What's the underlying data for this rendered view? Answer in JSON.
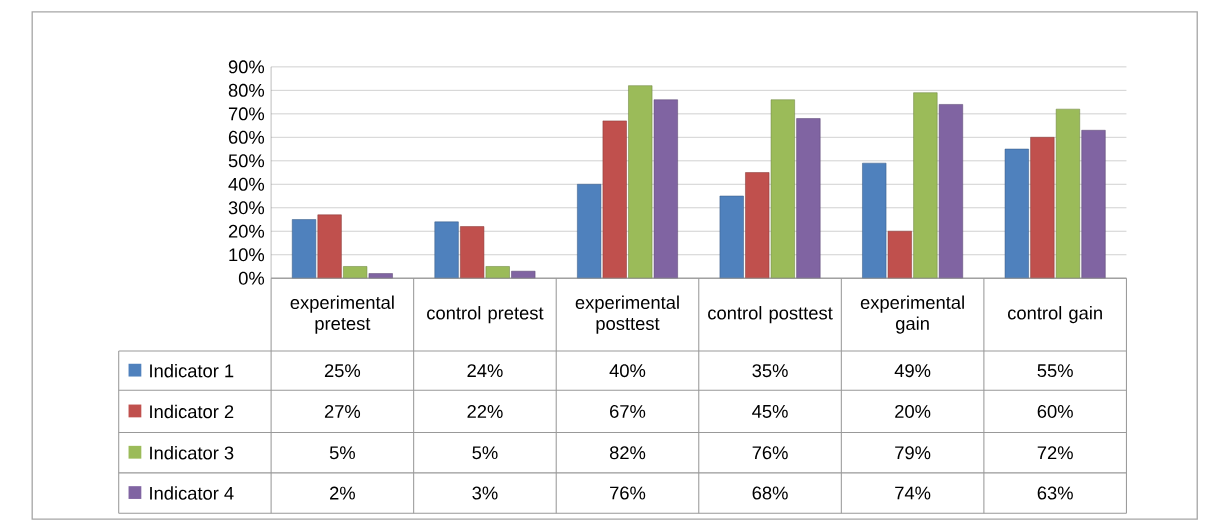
{
  "chart_data": {
    "type": "bar",
    "categories": [
      "experimental pretest",
      "control pretest",
      "experimental posttest",
      "control posttest",
      "experimental gain",
      "control gain"
    ],
    "series": [
      {
        "name": "Indicator 1",
        "color": "#4f81bd",
        "values": [
          25,
          24,
          40,
          35,
          49,
          55
        ],
        "value_labels": [
          "25%",
          "24%",
          "40%",
          "35%",
          "49%",
          "55%"
        ]
      },
      {
        "name": "Indicator 2",
        "color": "#c0504d",
        "values": [
          27,
          22,
          67,
          45,
          20,
          60
        ],
        "value_labels": [
          "27%",
          "22%",
          "67%",
          "45%",
          "20%",
          "60%"
        ]
      },
      {
        "name": "Indicator 3",
        "color": "#9bbb59",
        "values": [
          5,
          5,
          82,
          76,
          79,
          72
        ],
        "value_labels": [
          "5%",
          "5%",
          "82%",
          "76%",
          "79%",
          "72%"
        ]
      },
      {
        "name": "Indicator 4",
        "color": "#8064a2",
        "values": [
          2,
          3,
          76,
          68,
          74,
          63
        ],
        "value_labels": [
          "2%",
          "3%",
          "76%",
          "68%",
          "74%",
          "63%"
        ]
      }
    ],
    "ylim": [
      0,
      90
    ],
    "yticks": [
      {
        "value": 0,
        "label": "0%"
      },
      {
        "value": 10,
        "label": "10%"
      },
      {
        "value": 20,
        "label": "20%"
      },
      {
        "value": 30,
        "label": "30%"
      },
      {
        "value": 40,
        "label": "40%"
      },
      {
        "value": 50,
        "label": "50%"
      },
      {
        "value": 60,
        "label": "60%"
      },
      {
        "value": 70,
        "label": "70%"
      },
      {
        "value": 80,
        "label": "80%"
      },
      {
        "value": 90,
        "label": "90%"
      }
    ],
    "grid": "y",
    "legend": "bottom"
  }
}
